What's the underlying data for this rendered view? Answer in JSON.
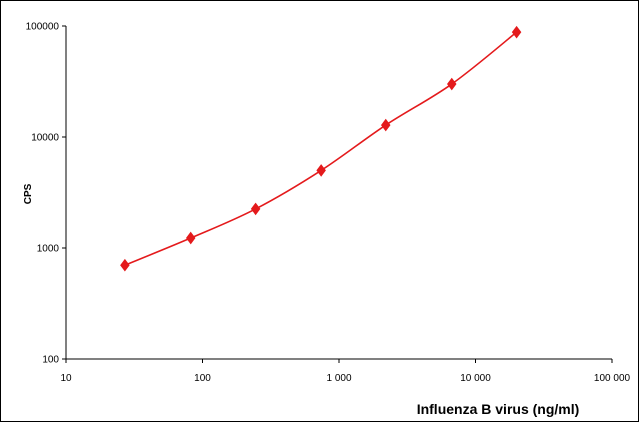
{
  "chart_data": {
    "type": "line",
    "title": "",
    "xlabel": "Influenza B virus (ng/ml)",
    "ylabel": "CPS",
    "x_scale": "log",
    "y_scale": "log",
    "xlim": [
      10,
      100000
    ],
    "ylim": [
      100,
      100000
    ],
    "x_ticks": [
      {
        "value": 10,
        "label": "10"
      },
      {
        "value": 100,
        "label": "100"
      },
      {
        "value": 1000,
        "label": "1 000"
      },
      {
        "value": 10000,
        "label": "10 000"
      },
      {
        "value": 100000,
        "label": "100 000"
      }
    ],
    "y_ticks": [
      {
        "value": 100,
        "label": "100"
      },
      {
        "value": 1000,
        "label": "1000"
      },
      {
        "value": 10000,
        "label": "10000"
      },
      {
        "value": 100000,
        "label": "100000"
      }
    ],
    "grid": false,
    "legend": "none",
    "series": [
      {
        "x": [
          27,
          82,
          245,
          740,
          2200,
          6700,
          20000
        ],
        "y": [
          700,
          1230,
          2250,
          5000,
          12800,
          30000,
          88000
        ],
        "color": "#e41a1c",
        "marker": "diamond"
      }
    ]
  }
}
